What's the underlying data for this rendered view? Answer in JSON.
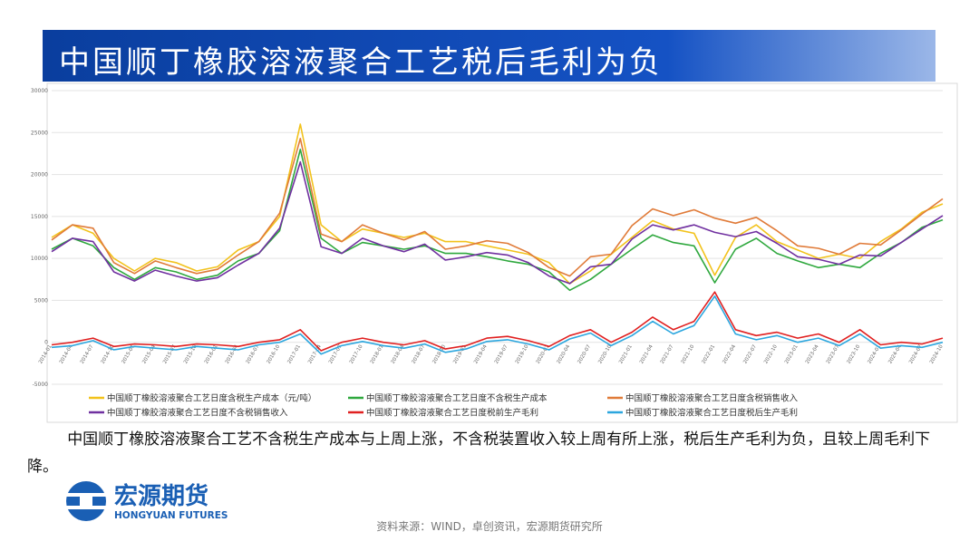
{
  "header": {
    "title": "中国顺丁橡胶溶液聚合工艺税后毛利为负"
  },
  "chart_data": {
    "type": "line",
    "categories": [
      "2014-01",
      "2014-04",
      "2014-07",
      "2014-10",
      "2015-01",
      "2015-04",
      "2015-07",
      "2015-10",
      "2016-01",
      "2016-04",
      "2016-07",
      "2016-10",
      "2017-01",
      "2017-04",
      "2017-07",
      "2017-10",
      "2018-01",
      "2018-04",
      "2018-07",
      "2018-10",
      "2019-01",
      "2019-04",
      "2019-07",
      "2019-10",
      "2020-01",
      "2020-04",
      "2020-07",
      "2020-10",
      "2021-01",
      "2021-04",
      "2021-07",
      "2021-10",
      "2022-01",
      "2022-04",
      "2022-07",
      "2022-10",
      "2023-01",
      "2023-04",
      "2023-07",
      "2023-10",
      "2024-01",
      "2024-04",
      "2024-07",
      "2024-10"
    ],
    "series": [
      {
        "name": "中国顺丁橡胶溶液聚合工艺日度含税生产成本（元/吨）",
        "color": "#f2c21b",
        "values": [
          12500,
          14000,
          13000,
          10000,
          8500,
          10000,
          9500,
          8500,
          9000,
          11000,
          12000,
          15000,
          26000,
          14000,
          12000,
          13500,
          13000,
          12500,
          13000,
          12000,
          12000,
          11500,
          11000,
          10500,
          9500,
          7000,
          8500,
          10500,
          12500,
          14500,
          13500,
          13000,
          8000,
          12500,
          14000,
          12000,
          11000,
          10000,
          10500,
          10000,
          12000,
          13500,
          15500,
          16500
        ]
      },
      {
        "name": "中国顺丁橡胶溶液聚合工艺日度不含税生产成本",
        "color": "#2fa83e",
        "values": [
          11100,
          12400,
          11500,
          8900,
          7500,
          8900,
          8400,
          7500,
          8000,
          9700,
          10600,
          13300,
          23000,
          12400,
          10600,
          11900,
          11500,
          11100,
          11500,
          10600,
          10600,
          10200,
          9700,
          9300,
          8400,
          6200,
          7500,
          9300,
          11100,
          12800,
          11900,
          11500,
          7100,
          11100,
          12400,
          10600,
          9700,
          8900,
          9300,
          8900,
          10600,
          11900,
          13700,
          14600
        ]
      },
      {
        "name": "中国顺丁橡胶溶液聚合工艺日度含税销售收入",
        "color": "#e07b39",
        "values": [
          12200,
          14000,
          13600,
          9500,
          8200,
          9700,
          8900,
          8200,
          8700,
          10400,
          12000,
          15400,
          24300,
          12900,
          12000,
          14000,
          13000,
          12200,
          13200,
          11100,
          11500,
          12100,
          11800,
          10700,
          8900,
          7900,
          10200,
          10500,
          13900,
          15900,
          15100,
          15800,
          14800,
          14200,
          14900,
          13300,
          11500,
          11200,
          10500,
          11800,
          11600,
          13400,
          15300,
          17100
        ]
      },
      {
        "name": "中国顺丁橡胶溶液聚合工艺日度不含税销售收入",
        "color": "#7030a0",
        "values": [
          10800,
          12400,
          12000,
          8400,
          7300,
          8600,
          7900,
          7300,
          7700,
          9200,
          10600,
          13600,
          21500,
          11400,
          10600,
          12400,
          11500,
          10800,
          11700,
          9800,
          10200,
          10700,
          10400,
          9500,
          7900,
          7000,
          9000,
          9300,
          12300,
          14000,
          13400,
          14000,
          13100,
          12600,
          13200,
          11800,
          10200,
          9900,
          9300,
          10400,
          10300,
          11900,
          13500,
          15100
        ]
      },
      {
        "name": "中国顺丁橡胶溶液聚合工艺日度税前生产毛利",
        "color": "#e02020",
        "values": [
          -300,
          0,
          500,
          -500,
          -200,
          -300,
          -500,
          -200,
          -300,
          -500,
          0,
          300,
          1500,
          -1000,
          0,
          500,
          0,
          -300,
          200,
          -800,
          -400,
          500,
          700,
          200,
          -500,
          800,
          1500,
          0,
          1200,
          3000,
          1500,
          2500,
          6000,
          1500,
          800,
          1200,
          500,
          1000,
          0,
          1500,
          -300,
          0,
          -200,
          500
        ]
      },
      {
        "name": "中国顺丁橡胶溶液聚合工艺日度税后生产毛利",
        "color": "#2ba6de",
        "values": [
          -600,
          -400,
          200,
          -900,
          -500,
          -700,
          -900,
          -500,
          -700,
          -900,
          -300,
          0,
          1000,
          -1400,
          -400,
          100,
          -400,
          -700,
          -200,
          -1200,
          -800,
          100,
          300,
          -200,
          -900,
          400,
          1100,
          -400,
          800,
          2500,
          1000,
          2000,
          5500,
          1000,
          300,
          800,
          0,
          500,
          -400,
          1000,
          -700,
          -400,
          -600,
          0
        ]
      }
    ],
    "ylim": [
      -5000,
      30000
    ],
    "yticks": [
      -5000,
      0,
      5000,
      10000,
      15000,
      20000,
      25000,
      30000
    ],
    "grid": true
  },
  "text": {
    "paragraph": "中国顺丁橡胶溶液聚合工艺不含税生产成本与上周上涨，不含税装置收入较上周有所上涨，税后生产毛利为负，且较上周毛利下降。"
  },
  "logo": {
    "name": "宏源期货",
    "english": "HONGYUAN FUTURES"
  },
  "footer": {
    "source": "资料来源：WIND，卓创资讯，宏源期货研究所"
  }
}
